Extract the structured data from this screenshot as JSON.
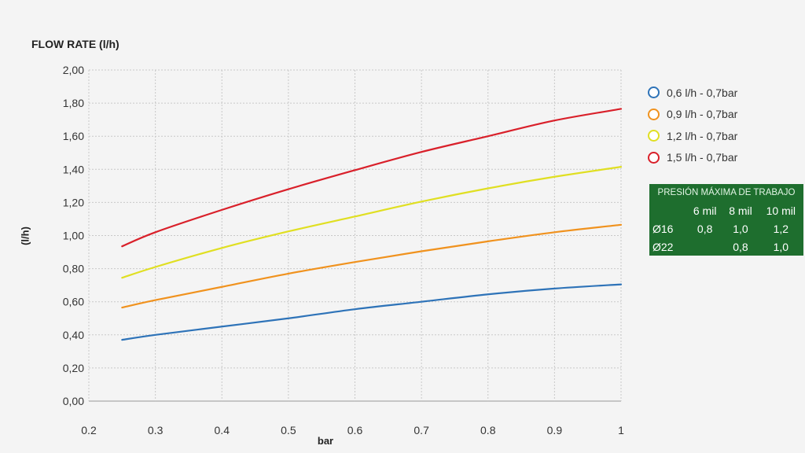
{
  "chart_data": {
    "type": "line",
    "title": "FLOW RATE (l/h)",
    "xlabel": "bar",
    "ylabel": "(l/h)",
    "xlim": [
      0.2,
      1.0
    ],
    "ylim": [
      0,
      2.0
    ],
    "x_ticks": [
      "0.2",
      "0.3",
      "0.4",
      "0.5",
      "0.6",
      "0.7",
      "0.8",
      "0.9",
      "1"
    ],
    "y_ticks": [
      "0,00",
      "0,20",
      "0,40",
      "0,60",
      "0,80",
      "1,00",
      "1,20",
      "1,40",
      "1,60",
      "1,80",
      "2,00"
    ],
    "grid": true,
    "legend_position": "right",
    "x": [
      0.25,
      0.3,
      0.4,
      0.5,
      0.6,
      0.7,
      0.8,
      0.9,
      1.0
    ],
    "series": [
      {
        "name": "0,6 l/h - 0,7bar",
        "color": "#2e73b8",
        "values": [
          0.37,
          0.4,
          0.45,
          0.5,
          0.555,
          0.6,
          0.645,
          0.68,
          0.705
        ]
      },
      {
        "name": "0,9 l/h - 0,7bar",
        "color": "#f0921e",
        "values": [
          0.565,
          0.61,
          0.69,
          0.77,
          0.84,
          0.905,
          0.965,
          1.02,
          1.065
        ]
      },
      {
        "name": "1,2 l/h - 0,7bar",
        "color": "#e0df22",
        "values": [
          0.745,
          0.81,
          0.925,
          1.025,
          1.115,
          1.205,
          1.285,
          1.355,
          1.415
        ]
      },
      {
        "name": "1,5 l/h - 0,7bar",
        "color": "#d9202a",
        "values": [
          0.935,
          1.02,
          1.155,
          1.28,
          1.395,
          1.505,
          1.6,
          1.695,
          1.765
        ]
      }
    ]
  },
  "pressure_table": {
    "caption": "PRESIÓN MÁXIMA DE TRABAJO",
    "header": [
      "",
      "6 mil",
      "8 mil",
      "10 mil"
    ],
    "rows": [
      [
        "Ø16",
        "0,8",
        "1,0",
        "1,2"
      ],
      [
        "Ø22",
        "",
        "0,8",
        "1,0"
      ]
    ]
  }
}
